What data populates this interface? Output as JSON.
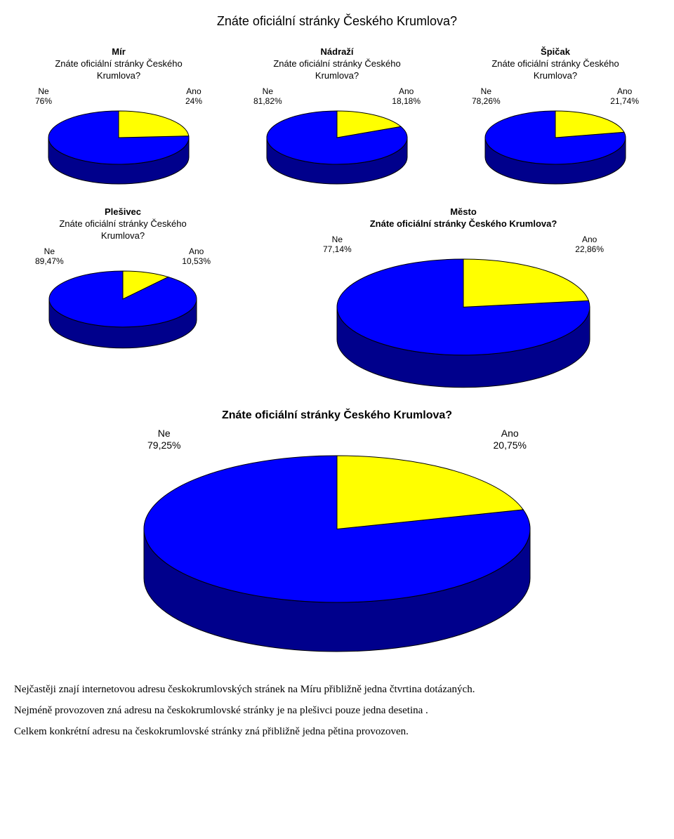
{
  "page_title": "Znáte oficiální stránky Českého Krumlova?",
  "question": "Znáte oficiální stránky Českého Krumlova?",
  "question_multi_top": "Znáte oficiální stránky Českého",
  "question_multi_bottom": "Krumlova?",
  "colors": {
    "ne": "#0000ff",
    "ano": "#ffff00",
    "bg": "#ffffff",
    "stroke": "#000000"
  },
  "charts": {
    "mir": {
      "location": "Mír",
      "ne_label": "Ne",
      "ne_pct": "76%",
      "ano_label": "Ano",
      "ano_pct": "24%",
      "ne_val": 76,
      "ano_val": 24,
      "diameter": 200,
      "thickness": 28
    },
    "nadrazi": {
      "location": "Nádraží",
      "ne_label": "Ne",
      "ne_pct": "81,82%",
      "ano_label": "Ano",
      "ano_pct": "18,18%",
      "ne_val": 81.82,
      "ano_val": 18.18,
      "diameter": 200,
      "thickness": 28
    },
    "spicak": {
      "location": "Špičak",
      "ne_label": "Ne",
      "ne_pct": "78,26%",
      "ano_label": "Ano",
      "ano_pct": "21,74%",
      "ne_val": 78.26,
      "ano_val": 21.74,
      "diameter": 200,
      "thickness": 28
    },
    "plesivec": {
      "location": "Plešivec",
      "ne_label": "Ne",
      "ne_pct": "89,47%",
      "ano_label": "Ano",
      "ano_pct": "10,53%",
      "ne_val": 89.47,
      "ano_val": 10.53,
      "diameter": 210,
      "thickness": 30
    },
    "mesto": {
      "location": "Město",
      "ne_label": "Ne",
      "ne_pct": "77,14%",
      "ano_label": "Ano",
      "ano_pct": "22,86%",
      "ne_val": 77.14,
      "ano_val": 22.86,
      "diameter": 360,
      "thickness": 46
    },
    "total": {
      "ne_label": "Ne",
      "ne_pct": "79,25%",
      "ano_label": "Ano",
      "ano_pct": "20,75%",
      "ne_val": 79.25,
      "ano_val": 20.75,
      "diameter": 550,
      "thickness": 70
    }
  },
  "paragraphs": {
    "p1": "Nejčastěji znají internetovou adresu českokrumlovských stránek na Míru přibližně jedna čtvrtina dotázaných.",
    "p2": "Nejméně provozoven zná adresu na českokrumlovské stránky je na plešivci pouze jedna desetina .",
    "p3": "Celkem konkrétní adresu na českokrumlovské stránky zná přibližně jedna pětina provozoven."
  }
}
